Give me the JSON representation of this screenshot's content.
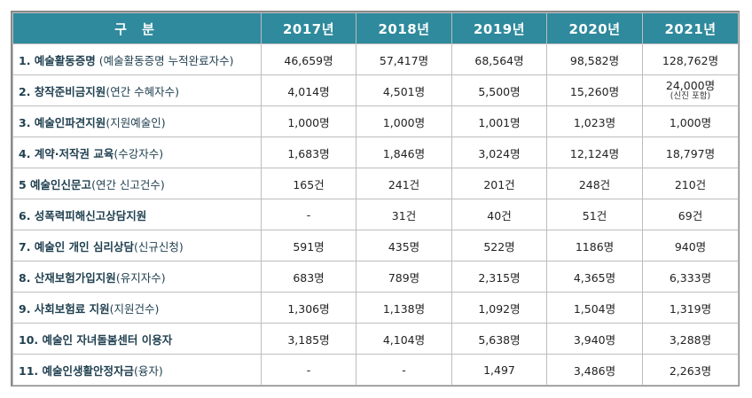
{
  "header": {
    "category": "구 분",
    "years": [
      "2017년",
      "2018년",
      "2019년",
      "2020년",
      "2021년"
    ]
  },
  "rows": [
    {
      "bold": "1. 예술활동증명",
      "sub": " (예술활동증명 누적완료자수)",
      "values": [
        "46,659명",
        "57,417명",
        "68,564명",
        "98,582명",
        "128,762명"
      ]
    },
    {
      "bold": "2. 창작준비금지원",
      "sub": "(연간 수혜자수)",
      "values": [
        "4,014명",
        "4,501명",
        "5,500명",
        "15,260명",
        "24,000명"
      ],
      "note5": "(신진 포함)"
    },
    {
      "bold": "3. 예술인파견지원",
      "sub": "(지원예술인)",
      "values": [
        "1,000명",
        "1,000명",
        "1,001명",
        "1,023명",
        "1,000명"
      ]
    },
    {
      "bold": "4. 계약·저작권 교육",
      "sub": "(수강자수)",
      "values": [
        "1,683명",
        "1,846명",
        "3,024명",
        "12,124명",
        "18,797명"
      ]
    },
    {
      "bold": "5 예술인신문고",
      "sub": "(연간 신고건수)",
      "values": [
        "165건",
        "241건",
        "201건",
        "248건",
        "210건"
      ]
    },
    {
      "bold": "6. 성폭력피해신고상담지원",
      "sub": "",
      "values": [
        "-",
        "31건",
        "40건",
        "51건",
        "69건"
      ]
    },
    {
      "bold": "7. 예술인 개인 심리상담",
      "sub": "(신규신청)",
      "values": [
        "591명",
        "435명",
        "522명",
        "1186명",
        "940명"
      ]
    },
    {
      "bold": "8. 산재보험가입지원",
      "sub": "(유지자수)",
      "values": [
        "683명",
        "789명",
        "2,315명",
        "4,365명",
        "6,333명"
      ]
    },
    {
      "bold": "9. 사회보험료 지원",
      "sub": "(지원건수)",
      "values": [
        "1,306명",
        "1,138명",
        "1,092명",
        "1,504명",
        "1,319명"
      ]
    },
    {
      "bold": "10. 예술인 자녀돌봄센터 이용자",
      "sub": "",
      "values": [
        "3,185명",
        "4,104명",
        "5,638명",
        "3,940명",
        "3,288명"
      ]
    },
    {
      "bold": "11. 예술인생활안정자금",
      "sub": "(융자)",
      "values": [
        "-",
        "-",
        "1,497",
        "3,486명",
        "2,263명"
      ]
    }
  ],
  "colors": {
    "header_bg": "#2e8a9c",
    "header_text": "#ffffff",
    "border": "#bdbdbd"
  }
}
